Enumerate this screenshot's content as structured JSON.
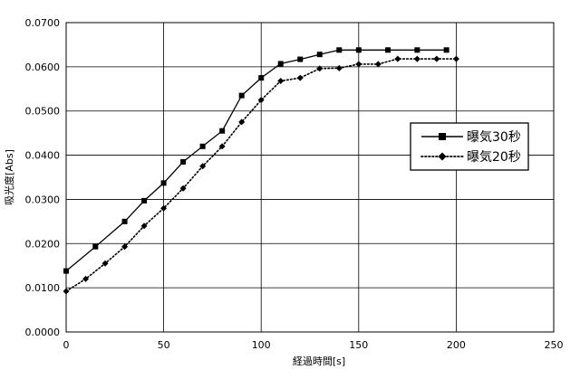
{
  "chart_data": {
    "type": "line",
    "title": "",
    "xlabel": "経過時間[s]",
    "ylabel": "吸光度[Abs]",
    "xlim": [
      0,
      250
    ],
    "ylim": [
      0,
      0.07
    ],
    "x_ticks": [
      0,
      50,
      100,
      150,
      200,
      250
    ],
    "x_tick_labels": [
      "0",
      "50",
      "100",
      "150",
      "200",
      "250"
    ],
    "y_ticks": [
      0,
      0.01,
      0.02,
      0.03,
      0.04,
      0.05,
      0.06,
      0.07
    ],
    "y_tick_labels": [
      "0.0000",
      "0.0100",
      "0.0200",
      "0.0300",
      "0.0400",
      "0.0500",
      "0.0600",
      "0.0700"
    ],
    "grid": true,
    "legend_position": "right",
    "series": [
      {
        "name": "曝気30秒",
        "marker": "square",
        "line_style": "solid",
        "color": "#000000",
        "x": [
          0,
          15,
          30,
          40,
          50,
          60,
          70,
          80,
          90,
          100,
          110,
          120,
          130,
          140,
          150,
          165,
          180,
          195
        ],
        "y": [
          0.0138,
          0.0193,
          0.025,
          0.0297,
          0.0337,
          0.0385,
          0.042,
          0.0455,
          0.0535,
          0.0575,
          0.0607,
          0.0617,
          0.0628,
          0.0638,
          0.0638,
          0.0638,
          0.0638,
          0.0638
        ]
      },
      {
        "name": "曝気20秒",
        "marker": "diamond",
        "line_style": "dotted",
        "color": "#000000",
        "x": [
          0,
          10,
          20,
          30,
          40,
          50,
          60,
          70,
          80,
          90,
          100,
          110,
          120,
          130,
          140,
          150,
          160,
          170,
          180,
          190,
          200
        ],
        "y": [
          0.0092,
          0.012,
          0.0155,
          0.0193,
          0.024,
          0.028,
          0.0325,
          0.0375,
          0.042,
          0.0475,
          0.0525,
          0.0568,
          0.0575,
          0.0596,
          0.0597,
          0.0606,
          0.0606,
          0.0618,
          0.0618,
          0.0618,
          0.0618
        ]
      }
    ]
  }
}
